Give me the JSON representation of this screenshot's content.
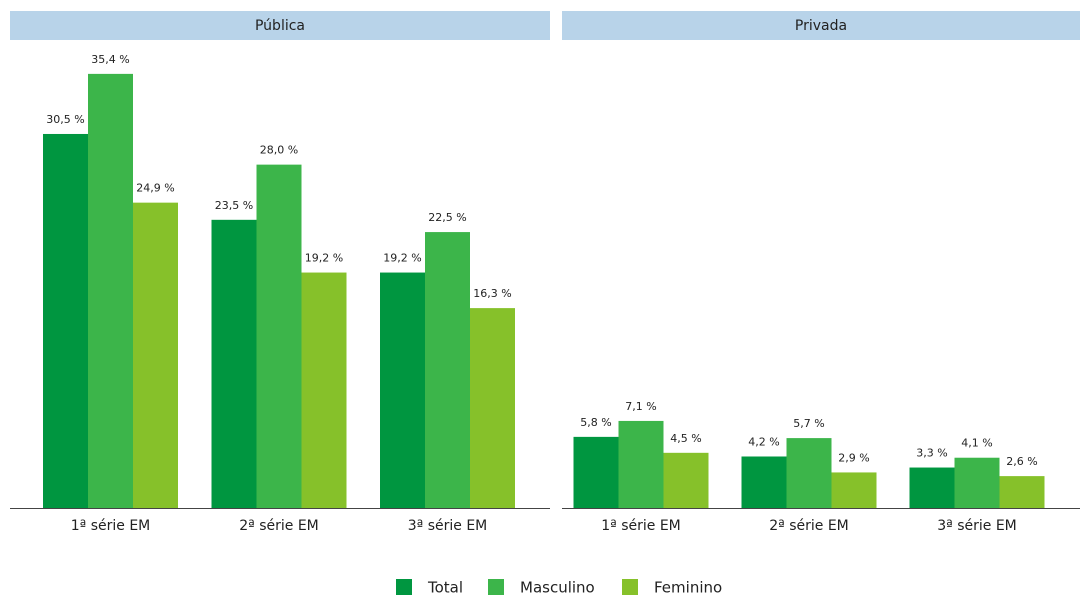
{
  "chart_data": [
    {
      "type": "bar",
      "title": "Pública",
      "categories": [
        "1ª série EM",
        "2ª série EM",
        "3ª série EM"
      ],
      "ylim": [
        0,
        38
      ],
      "series": [
        {
          "name": "Total",
          "color": "#009640",
          "values": [
            30.5,
            23.5,
            19.2
          ],
          "value_labels": [
            "30,5 %",
            "23,5 %",
            "19,2 %"
          ]
        },
        {
          "name": "Masculino",
          "color": "#3cb54a",
          "values": [
            35.4,
            28.0,
            22.5
          ],
          "value_labels": [
            "35,4 %",
            "28,0 %",
            "22,5 %"
          ]
        },
        {
          "name": "Feminino",
          "color": "#86c12a",
          "values": [
            24.9,
            19.2,
            16.3
          ],
          "value_labels": [
            "24,9 %",
            "19,2 %",
            "16,3 %"
          ]
        }
      ]
    },
    {
      "type": "bar",
      "title": "Privada",
      "categories": [
        "1ª série EM",
        "2ª série EM",
        "3ª série EM"
      ],
      "ylim": [
        0,
        38
      ],
      "series": [
        {
          "name": "Total",
          "color": "#009640",
          "values": [
            5.8,
            4.2,
            3.3
          ],
          "value_labels": [
            "5,8 %",
            "4,2 %",
            "3,3 %"
          ]
        },
        {
          "name": "Masculino",
          "color": "#3cb54a",
          "values": [
            7.1,
            5.7,
            4.1
          ],
          "value_labels": [
            "7,1 %",
            "5,7 %",
            "4,1 %"
          ]
        },
        {
          "name": "Feminino",
          "color": "#86c12a",
          "values": [
            4.5,
            2.9,
            2.6
          ],
          "value_labels": [
            "4,5 %",
            "2,9 %",
            "2,6 %"
          ]
        }
      ]
    }
  ]
}
